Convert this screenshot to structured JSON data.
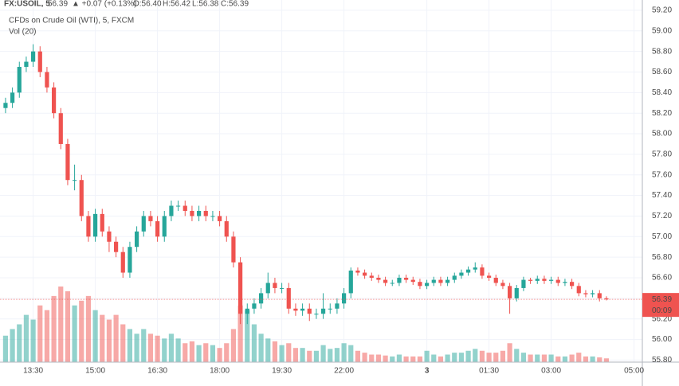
{
  "chart_data": {
    "type": "candlestick",
    "symbol": "FX:USOIL, 5",
    "price_text": "56.39",
    "change": "▲ +0.07 (+0.13%)",
    "ohlc_text": [
      "O:56.40",
      "H:56.42",
      "L:56.38",
      "C:56.39"
    ],
    "subtitle": "CFDs on Crude Oil (WTI), 5, FXCM",
    "volume_label": "Vol (20)",
    "up_color": "#26a69a",
    "down_color": "#ef5350",
    "grid": true,
    "ylim": [
      55.78,
      59.3
    ],
    "yticks": [
      {
        "value": 55.8,
        "label": "55.80"
      },
      {
        "value": 56,
        "label": "56.00"
      },
      {
        "value": 56.2,
        "label": "56.20"
      },
      {
        "value": 56.4,
        "label": "56.40"
      },
      {
        "value": 56.6,
        "label": "56.60"
      },
      {
        "value": 56.8,
        "label": "56.80"
      },
      {
        "value": 57,
        "label": "57.00"
      },
      {
        "value": 57.2,
        "label": "57.20"
      },
      {
        "value": 57.4,
        "label": "57.40"
      },
      {
        "value": 57.6,
        "label": "57.60"
      },
      {
        "value": 57.8,
        "label": "57.80"
      },
      {
        "value": 58,
        "label": "58.00"
      },
      {
        "value": 58.2,
        "label": "58.20"
      },
      {
        "value": 58.4,
        "label": "58.40"
      },
      {
        "value": 58.6,
        "label": "58.60"
      },
      {
        "value": 58.8,
        "label": "58.80"
      },
      {
        "value": 59,
        "label": "59.00"
      },
      {
        "value": 59.2,
        "label": "59.20"
      }
    ],
    "xlim": [
      -0.8,
      92.2
    ],
    "xticks": [
      {
        "value": 4,
        "label": "13:30"
      },
      {
        "value": 13,
        "label": "15:00"
      },
      {
        "value": 22,
        "label": "16:30"
      },
      {
        "value": 31,
        "label": "18:00"
      },
      {
        "value": 40,
        "label": "19:30"
      },
      {
        "value": 49,
        "label": "22:00"
      },
      {
        "value": 61,
        "label": "3"
      },
      {
        "value": 70,
        "label": "01:30"
      },
      {
        "value": 79,
        "label": "03:00"
      },
      {
        "value": 91,
        "label": "05:00"
      }
    ],
    "last_price": {
      "value": 56.39,
      "label": "56.39"
    },
    "countdown": "00:09",
    "open": [
      58.25,
      58.3,
      58.4,
      58.65,
      58.7,
      58.8,
      58.6,
      58.45,
      58.2,
      57.9,
      57.55,
      57.55,
      57.2,
      57,
      57.22,
      57.05,
      56.95,
      56.85,
      56.65,
      56.9,
      57.05,
      57.2,
      57.15,
      57,
      57.2,
      57.3,
      57.3,
      57.25,
      57.2,
      57.25,
      57.2,
      57.2,
      57.15,
      57,
      56.75,
      56.25,
      56.3,
      56.35,
      56.45,
      56.55,
      56.5,
      56.5,
      56.3,
      56.28,
      56.3,
      56.25,
      56.25,
      56.3,
      56.3,
      56.35,
      56.45,
      56.67,
      56.65,
      56.62,
      56.6,
      56.58,
      56.55,
      56.55,
      56.6,
      56.58,
      56.56,
      56.52,
      56.55,
      56.58,
      56.55,
      56.58,
      56.62,
      56.65,
      56.68,
      56.7,
      56.62,
      56.6,
      56.55,
      56.52,
      56.4,
      56.5,
      56.58,
      56.57,
      56.59,
      56.57,
      56.58,
      56.55,
      56.56,
      56.52,
      56.45,
      56.44,
      56.45,
      56.4
    ],
    "high": [
      58.35,
      58.45,
      58.7,
      58.75,
      58.87,
      58.85,
      58.65,
      58.5,
      58.25,
      57.95,
      57.7,
      57.6,
      57.25,
      57.27,
      57.27,
      57.1,
      57,
      56.9,
      56.95,
      57.1,
      57.25,
      57.25,
      57.2,
      57.25,
      57.35,
      57.35,
      57.35,
      57.3,
      57.3,
      57.3,
      57.25,
      57.25,
      57.2,
      57.05,
      56.8,
      56.35,
      56.4,
      56.5,
      56.65,
      56.6,
      56.55,
      56.55,
      56.35,
      56.35,
      56.35,
      56.3,
      56.45,
      56.35,
      56.4,
      56.5,
      56.7,
      56.7,
      56.68,
      56.65,
      56.63,
      56.61,
      56.58,
      56.63,
      56.63,
      56.61,
      56.59,
      56.58,
      56.61,
      56.61,
      56.61,
      56.65,
      56.68,
      56.71,
      56.75,
      56.73,
      56.65,
      56.63,
      56.58,
      56.55,
      56.53,
      56.61,
      56.6,
      56.62,
      56.62,
      56.61,
      56.61,
      56.59,
      56.59,
      56.55,
      56.48,
      56.48,
      56.48,
      56.42
    ],
    "low": [
      58.2,
      58.25,
      58.35,
      58.6,
      58.65,
      58.55,
      58.4,
      58.15,
      57.85,
      57.5,
      57.45,
      57.15,
      56.95,
      56.95,
      57,
      56.85,
      56.8,
      56.6,
      56.6,
      56.85,
      57,
      57.1,
      56.95,
      56.95,
      57.15,
      57.25,
      57.2,
      57.15,
      57.15,
      57.15,
      57.15,
      57.1,
      56.95,
      56.7,
      56.15,
      56.15,
      56.25,
      56.3,
      56.4,
      56.45,
      56.45,
      56.25,
      56.23,
      56.23,
      56.18,
      56.2,
      56.2,
      56.25,
      56.25,
      56.3,
      56.4,
      56.62,
      56.59,
      56.57,
      56.55,
      56.52,
      56.52,
      56.52,
      56.55,
      56.53,
      56.49,
      56.49,
      56.52,
      56.52,
      56.52,
      56.55,
      56.59,
      56.62,
      56.65,
      56.59,
      56.57,
      56.52,
      56.49,
      56.25,
      56.37,
      56.47,
      56.54,
      56.54,
      56.54,
      56.54,
      56.52,
      56.52,
      56.49,
      56.42,
      56.41,
      56.41,
      56.37,
      56.38
    ],
    "close": [
      58.3,
      58.4,
      58.65,
      58.7,
      58.8,
      58.6,
      58.45,
      58.2,
      57.9,
      57.55,
      57.55,
      57.2,
      57,
      57.22,
      57.05,
      56.95,
      56.85,
      56.65,
      56.9,
      57.05,
      57.2,
      57.15,
      57,
      57.2,
      57.3,
      57.3,
      57.25,
      57.2,
      57.25,
      57.2,
      57.2,
      57.15,
      57,
      56.75,
      56.25,
      56.3,
      56.35,
      56.45,
      56.55,
      56.5,
      56.5,
      56.3,
      56.28,
      56.3,
      56.25,
      56.25,
      56.3,
      56.3,
      56.35,
      56.45,
      56.67,
      56.65,
      56.62,
      56.6,
      56.58,
      56.55,
      56.55,
      56.6,
      56.58,
      56.56,
      56.52,
      56.55,
      56.58,
      56.55,
      56.58,
      56.62,
      56.65,
      56.68,
      56.7,
      56.62,
      56.6,
      56.55,
      56.52,
      56.4,
      56.5,
      56.58,
      56.57,
      56.59,
      56.57,
      56.58,
      56.55,
      56.56,
      56.52,
      56.45,
      56.44,
      56.45,
      56.4,
      56.39
    ],
    "volume": [
      28,
      35,
      40,
      50,
      45,
      60,
      55,
      70,
      80,
      75,
      60,
      65,
      70,
      55,
      50,
      45,
      50,
      40,
      35,
      30,
      35,
      30,
      28,
      25,
      30,
      25,
      20,
      22,
      18,
      20,
      18,
      15,
      20,
      35,
      60,
      55,
      40,
      30,
      25,
      22,
      18,
      20,
      15,
      15,
      12,
      12,
      18,
      14,
      15,
      20,
      18,
      12,
      10,
      8,
      8,
      7,
      6,
      8,
      6,
      6,
      6,
      12,
      8,
      6,
      8,
      10,
      10,
      12,
      14,
      12,
      10,
      10,
      12,
      20,
      14,
      10,
      8,
      8,
      8,
      8,
      6,
      6,
      8,
      10,
      6,
      6,
      5,
      4
    ]
  }
}
